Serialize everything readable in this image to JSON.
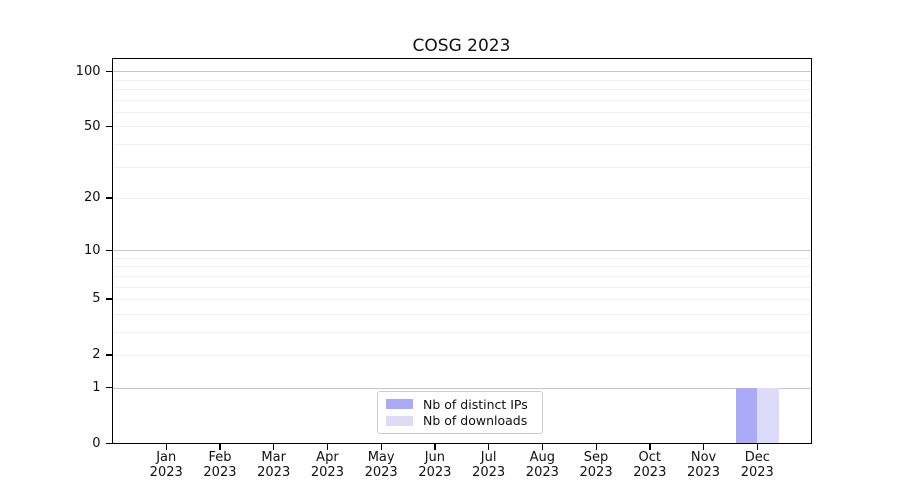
{
  "chart_data": {
    "type": "bar",
    "title": "COSG 2023",
    "categories": [
      "Jan",
      "Feb",
      "Mar",
      "Apr",
      "May",
      "Jun",
      "Jul",
      "Aug",
      "Sep",
      "Oct",
      "Nov",
      "Dec"
    ],
    "category_year": "2023",
    "series": [
      {
        "name": "Nb of distinct IPs",
        "color": "#aaaaf6",
        "values": [
          0,
          0,
          0,
          0,
          0,
          0,
          0,
          0,
          0,
          0,
          0,
          1
        ]
      },
      {
        "name": "Nb of downloads",
        "color": "#dcdcf8",
        "values": [
          0,
          0,
          0,
          0,
          0,
          0,
          0,
          0,
          0,
          0,
          0,
          1
        ]
      }
    ],
    "y_scale": "log10(value+1)",
    "y_ticks": [
      0,
      1,
      2,
      5,
      10,
      20,
      50,
      100
    ],
    "y_major_gridlines": [
      1,
      10,
      100
    ],
    "y_minor_gridlines": [
      2,
      3,
      4,
      5,
      6,
      7,
      8,
      9,
      20,
      30,
      40,
      50,
      60,
      70,
      80,
      90
    ],
    "ylim": [
      0,
      115
    ],
    "grid": true,
    "legend_position": "lower center",
    "colors": {
      "major_grid": "#c6c6c6",
      "minor_grid": "#f0f0f0",
      "spine": "#000000",
      "text": "#111111",
      "legend_border": "#cccccc"
    }
  }
}
